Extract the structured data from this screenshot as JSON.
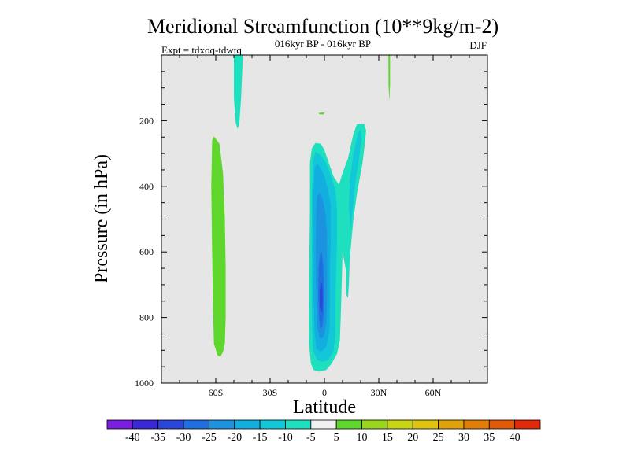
{
  "chart_data": {
    "type": "heatmap",
    "title": "Meridional Streamfunction (10**9kg/m-2)",
    "subtitle": "016kyr BP - 016kyr BP",
    "season": "DJF",
    "experiment": "Expt = tdxoq-tdwtq",
    "xlabel": "Latitude",
    "ylabel": "Pressure (in hPa)",
    "xlim": [
      -90,
      90
    ],
    "ylim": [
      1000,
      0
    ],
    "x_ticks": [
      {
        "value": -60,
        "label": "60S"
      },
      {
        "value": -30,
        "label": "30S"
      },
      {
        "value": 0,
        "label": "0"
      },
      {
        "value": 30,
        "label": "30N"
      },
      {
        "value": 60,
        "label": "60N"
      }
    ],
    "y_ticks": [
      {
        "value": 200,
        "label": "200"
      },
      {
        "value": 400,
        "label": "400"
      },
      {
        "value": 600,
        "label": "600"
      },
      {
        "value": 800,
        "label": "800"
      },
      {
        "value": 1000,
        "label": "1000"
      }
    ],
    "background_color": "#e6e6e6",
    "colorbar": {
      "labels": [
        "-40",
        "-35",
        "-30",
        "-25",
        "-20",
        "-15",
        "-10",
        "-5",
        "5",
        "10",
        "15",
        "20",
        "25",
        "30",
        "35",
        "40"
      ],
      "colors": [
        "#7a1fe0",
        "#3a27d6",
        "#2a46db",
        "#1f6fe0",
        "#1b93df",
        "#13aee0",
        "#12c8d8",
        "#1ee0bf",
        "#f0f0f0",
        "#5ed62c",
        "#9ad61c",
        "#c8d514",
        "#e0c30e",
        "#e0a20a",
        "#e07d08",
        "#e05a08",
        "#e02a0a"
      ]
    },
    "regions": [
      {
        "name": "stratosphere-tongue-south",
        "level": "-10",
        "color": "#1ee0bf",
        "points": [
          [
            -50,
            0
          ],
          [
            -45,
            0
          ],
          [
            -46,
            130
          ],
          [
            -47,
            210
          ],
          [
            -48,
            225
          ],
          [
            -49,
            205
          ],
          [
            -50,
            130
          ]
        ]
      },
      {
        "name": "stratosphere-sliver-north",
        "level": "10",
        "color": "#5ed62c",
        "points": [
          [
            35.3,
            0
          ],
          [
            36.2,
            0
          ],
          [
            36.2,
            90
          ],
          [
            35.8,
            140
          ],
          [
            35.4,
            90
          ]
        ]
      },
      {
        "name": "small-blip",
        "level": "10",
        "color": "#5ed62c",
        "points": [
          [
            -3,
            176
          ],
          [
            0,
            175
          ],
          [
            -0.5,
            181
          ],
          [
            -3,
            180
          ]
        ]
      },
      {
        "name": "southern-midlatitude-cell",
        "level": "10",
        "color": "#5ed62c",
        "points": [
          [
            -62,
            260
          ],
          [
            -61,
            248
          ],
          [
            -58,
            270
          ],
          [
            -56,
            360
          ],
          [
            -55,
            500
          ],
          [
            -54.5,
            650
          ],
          [
            -54.5,
            800
          ],
          [
            -55,
            880
          ],
          [
            -56,
            905
          ],
          [
            -57.5,
            920
          ],
          [
            -59,
            915
          ],
          [
            -61,
            880
          ],
          [
            -61.5,
            780
          ],
          [
            -62,
            600
          ],
          [
            -62.5,
            400
          ]
        ]
      },
      {
        "name": "hadley-cell-outer",
        "level": "-10",
        "color": "#1ee0bf",
        "points": [
          [
            -8,
            480
          ],
          [
            -8,
            330
          ],
          [
            -7,
            285
          ],
          [
            -5,
            268
          ],
          [
            -2,
            270
          ],
          [
            0,
            290
          ],
          [
            5,
            370
          ],
          [
            8,
            395
          ],
          [
            10,
            360
          ],
          [
            13,
            315
          ],
          [
            16,
            240
          ],
          [
            18,
            210
          ],
          [
            22,
            210
          ],
          [
            23,
            230
          ],
          [
            22.5,
            260
          ],
          [
            21,
            330
          ],
          [
            18,
            420
          ],
          [
            16,
            500
          ],
          [
            15,
            560
          ],
          [
            14,
            620
          ],
          [
            13.5,
            700
          ],
          [
            13,
            740
          ],
          [
            12,
            730
          ],
          [
            12,
            660
          ],
          [
            10,
            600
          ],
          [
            9.5,
            700
          ],
          [
            9,
            800
          ],
          [
            8.5,
            870
          ],
          [
            7,
            910
          ],
          [
            4,
            940
          ],
          [
            1,
            960
          ],
          [
            -3,
            965
          ],
          [
            -6,
            960
          ],
          [
            -7.5,
            940
          ],
          [
            -8.5,
            880
          ],
          [
            -8.5,
            700
          ]
        ]
      },
      {
        "name": "hadley-cell-ring",
        "level": "-15",
        "color": "#12c8d8",
        "points": [
          [
            -7,
            430
          ],
          [
            -6.5,
            330
          ],
          [
            -5,
            295
          ],
          [
            -2,
            305
          ],
          [
            1,
            330
          ],
          [
            4,
            375
          ],
          [
            6,
            410
          ],
          [
            7,
            470
          ],
          [
            7,
            560
          ],
          [
            6.5,
            660
          ],
          [
            6,
            760
          ],
          [
            6,
            850
          ],
          [
            5,
            905
          ],
          [
            2,
            930
          ],
          [
            -1,
            935
          ],
          [
            -4,
            930
          ],
          [
            -6,
            905
          ],
          [
            -6.8,
            840
          ],
          [
            -7,
            740
          ],
          [
            -7,
            620
          ]
        ]
      },
      {
        "name": "hadley-cell-ring-northern-arm",
        "level": "-15",
        "color": "#12c8d8",
        "points": [
          [
            14,
            380
          ],
          [
            16,
            300
          ],
          [
            18.5,
            240
          ],
          [
            20,
            225
          ],
          [
            20.5,
            255
          ],
          [
            19,
            320
          ],
          [
            17,
            390
          ],
          [
            16,
            450
          ],
          [
            15,
            500
          ],
          [
            14.5,
            530
          ],
          [
            13.5,
            470
          ]
        ]
      },
      {
        "name": "hadley-cell-middle",
        "level": "-20",
        "color": "#13aee0",
        "points": [
          [
            -6,
            420
          ],
          [
            -5.5,
            345
          ],
          [
            -4,
            330
          ],
          [
            -2,
            345
          ],
          [
            0,
            370
          ],
          [
            2,
            410
          ],
          [
            3.5,
            460
          ],
          [
            3.5,
            560
          ],
          [
            3,
            660
          ],
          [
            3,
            760
          ],
          [
            2.8,
            840
          ],
          [
            1,
            890
          ],
          [
            -2,
            905
          ],
          [
            -4.5,
            895
          ],
          [
            -5.5,
            840
          ],
          [
            -6,
            740
          ],
          [
            -6,
            560
          ]
        ]
      },
      {
        "name": "hadley-cell-inner",
        "level": "-25",
        "color": "#1b93df",
        "points": [
          [
            -4.5,
            480
          ],
          [
            -4,
            430
          ],
          [
            -2.5,
            420
          ],
          [
            -1,
            440
          ],
          [
            0.5,
            480
          ],
          [
            1.5,
            540
          ],
          [
            1.5,
            640
          ],
          [
            1.5,
            740
          ],
          [
            1,
            820
          ],
          [
            -0.5,
            860
          ],
          [
            -2.5,
            865
          ],
          [
            -4,
            830
          ],
          [
            -4.5,
            740
          ],
          [
            -4.8,
            600
          ]
        ]
      },
      {
        "name": "hadley-cell-core",
        "level": "-30",
        "color": "#1f6fe0",
        "points": [
          [
            -3.2,
            650
          ],
          [
            -2.5,
            610
          ],
          [
            -1.5,
            600
          ],
          [
            -0.7,
            640
          ],
          [
            -0.3,
            710
          ],
          [
            -0.5,
            790
          ],
          [
            -1.2,
            830
          ],
          [
            -2.3,
            835
          ],
          [
            -3,
            800
          ],
          [
            -3.4,
            740
          ]
        ]
      },
      {
        "name": "hadley-cell-deep-core",
        "level": "-35",
        "color": "#2a46db",
        "points": [
          [
            -2.6,
            720
          ],
          [
            -2,
            690
          ],
          [
            -1.2,
            700
          ],
          [
            -0.9,
            745
          ],
          [
            -1.2,
            780
          ],
          [
            -2,
            790
          ],
          [
            -2.6,
            765
          ]
        ]
      }
    ]
  }
}
